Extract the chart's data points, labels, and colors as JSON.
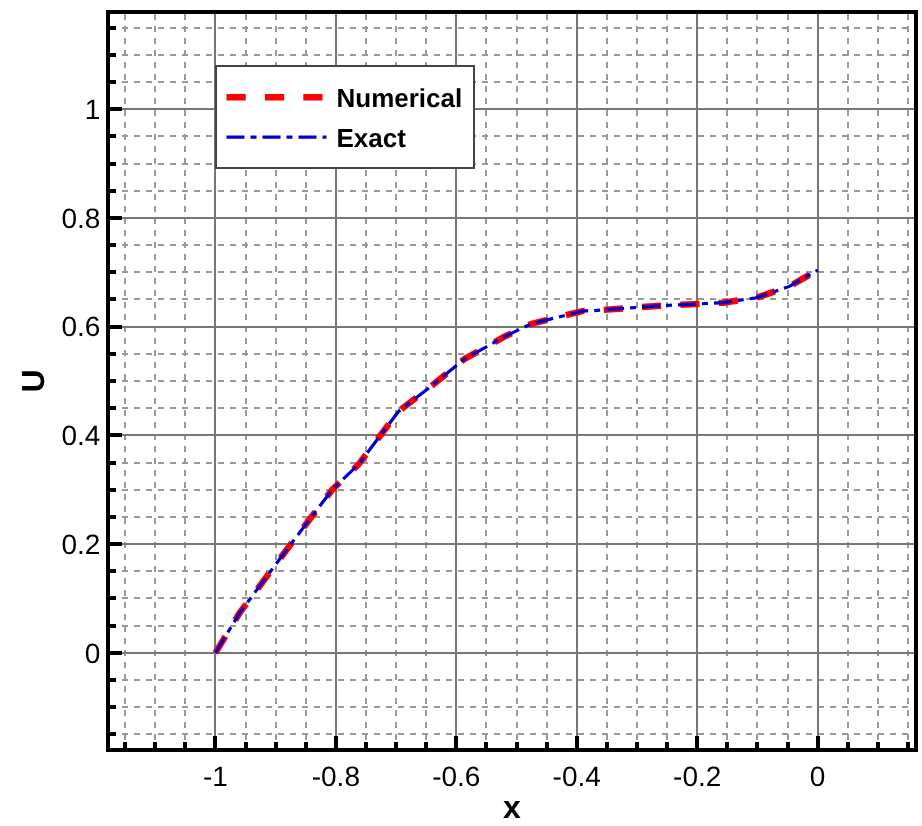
{
  "chart_data": {
    "type": "line",
    "xlabel": "x",
    "ylabel": "U",
    "x": [
      -1,
      -0.96,
      -0.872,
      -0.806,
      -0.762,
      -0.696,
      -0.641,
      -0.587,
      -0.521,
      -0.476,
      -0.389,
      -0.377,
      -0.267,
      -0.157,
      -0.102,
      -0.047,
      0
    ],
    "series": [
      {
        "name": "Numerical",
        "color": "#ff0000",
        "line_style": "dashed",
        "values": [
          0,
          0.073,
          0.204,
          0.3,
          0.347,
          0.444,
          0.491,
          0.54,
          0.581,
          0.605,
          0.629,
          0.629,
          0.638,
          0.644,
          0.653,
          0.674,
          0.704
        ]
      },
      {
        "name": "Exact",
        "color": "#0000cc",
        "line_style": "dashdot",
        "values": [
          0,
          0.073,
          0.204,
          0.3,
          0.347,
          0.444,
          0.491,
          0.54,
          0.581,
          0.605,
          0.629,
          0.629,
          0.638,
          0.644,
          0.653,
          0.674,
          0.704
        ]
      }
    ],
    "xlim": [
      -1.175,
      0.16
    ],
    "ylim": [
      -0.175,
      1.175
    ],
    "xticks": [
      -1,
      -0.8,
      -0.6,
      -0.4,
      -0.2,
      0
    ],
    "yticks": [
      0,
      0.2,
      0.4,
      0.6,
      0.8,
      1
    ],
    "grid": true,
    "legend": "top left"
  }
}
